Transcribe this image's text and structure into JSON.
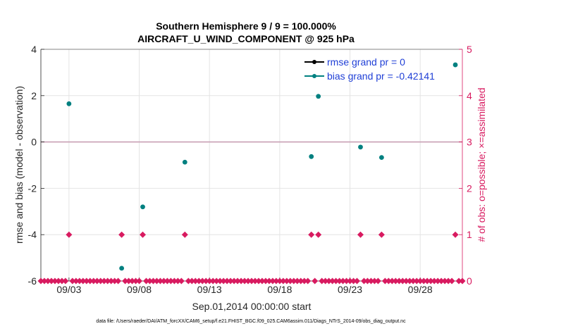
{
  "chart_data": {
    "type": "scatter",
    "title": "Southern Hemisphere 9 / 9 = 100.000%",
    "subtitle": "AIRCRAFT_U_WIND_COMPONENT @ 925 hPa",
    "xlabel": "Sep.01,2014 00:00:00 start",
    "ylabel": "rmse and bias (model - observation)",
    "ylabel_right": "# of obs: o=possible; ×=assimilated",
    "xlim": [
      1.0,
      31.0
    ],
    "ylim": [
      -6,
      4
    ],
    "ylim_right": [
      0,
      5
    ],
    "x_ticks": [
      3,
      8,
      13,
      18,
      23,
      28
    ],
    "x_tick_labels": [
      "09/03",
      "09/08",
      "09/13",
      "09/18",
      "09/23",
      "09/28"
    ],
    "y_ticks": [
      -6,
      -4,
      -2,
      0,
      2,
      4
    ],
    "y_tick_labels": [
      "-6",
      "-4",
      "-2",
      "0",
      "2",
      "4"
    ],
    "y_right_ticks": [
      0,
      1,
      2,
      3,
      4,
      5
    ],
    "y_right_tick_labels": [
      "0",
      "1",
      "2",
      "3",
      "4",
      "5"
    ],
    "grid": true,
    "legend_position": "top-right",
    "colors": {
      "rmse": "#000000",
      "bias": "#008080",
      "obs": "#d81b60",
      "zero_line": "#c8a0b4",
      "grid": "#e4e4e4"
    },
    "series": [
      {
        "name": "rmse grand pr = 0",
        "x": [],
        "values": []
      },
      {
        "name": "bias grand pr = -0.42141",
        "x": [
          3.0,
          6.75,
          8.25,
          11.25,
          20.25,
          20.75,
          23.75,
          25.25,
          30.5
        ],
        "values": [
          1.65,
          -5.45,
          -2.8,
          -0.87,
          -0.63,
          1.97,
          -0.22,
          -0.67,
          3.33
        ]
      },
      {
        "name": "obs possible",
        "x": [
          3.0,
          6.75,
          8.25,
          11.25,
          20.25,
          20.75,
          23.75,
          25.25,
          30.5
        ],
        "values": [
          1,
          1,
          1,
          1,
          1,
          1,
          1,
          1,
          1
        ]
      },
      {
        "name": "obs assimilated",
        "x": [
          3.0,
          6.75,
          8.25,
          11.25,
          20.25,
          20.75,
          23.75,
          25.25,
          30.5
        ],
        "values": [
          1,
          1,
          1,
          1,
          1,
          1,
          1,
          1,
          1
        ]
      }
    ],
    "obs_zero_step_days": 0.25
  },
  "footer": "data file: /Users/raeder/DAI/ATM_forcXX/CAM6_setup/f.e21.FHIST_BGC.f09_025.CAM6assim.011/Diags_NTrS_2014-09/obs_diag_output.nc"
}
